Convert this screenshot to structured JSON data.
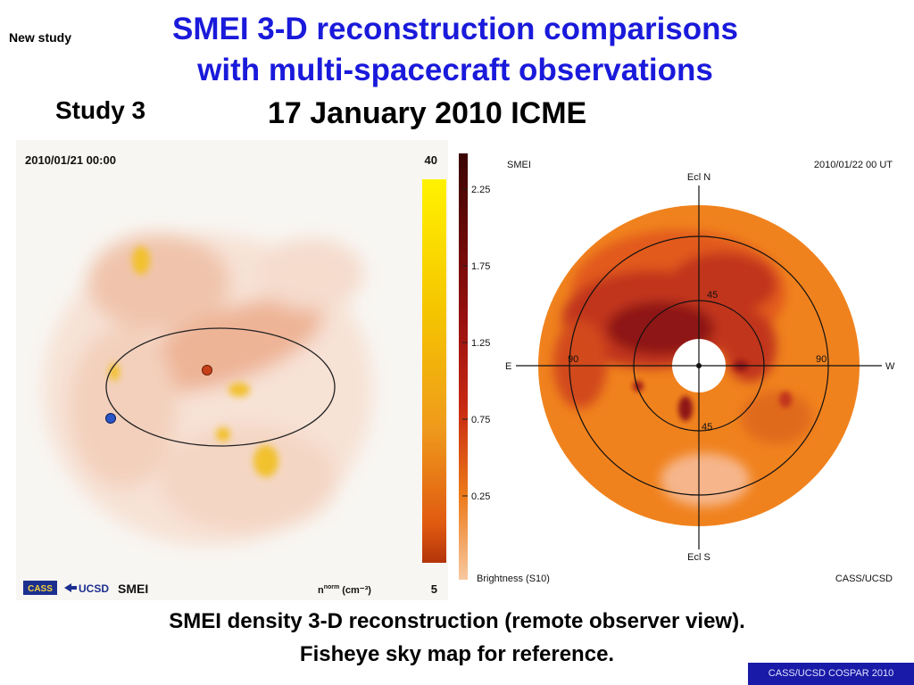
{
  "header": {
    "tag": "New study",
    "title_line1": "SMEI 3-D reconstruction comparisons",
    "title_line2": "with multi-spacecraft observations",
    "study": "Study 3",
    "event": "17 January 2010 ICME"
  },
  "left_panel": {
    "timestamp": "2010/01/21  00:00",
    "scale_max": "40",
    "scale_min": "5",
    "units": "n",
    "units_sup": "norm",
    "units_tail": "(cm⁻³)",
    "logo_cass": "CASS",
    "logo_ucsd": "UCSD",
    "logo_smei": "SMEI",
    "colors": {
      "bg": "#f8f6f2",
      "cloud": "#f2c2a8",
      "hot": "#f2c12e",
      "orbit": "#222222",
      "earth": "#2a55c8",
      "body": "#c8401a"
    }
  },
  "right_panel": {
    "instrument": "SMEI",
    "timestamp": "2010/01/22  00  UT",
    "north": "Ecl N",
    "south": "Ecl S",
    "east": "E",
    "west": "W",
    "ring_labels": [
      "45",
      "90",
      "90",
      "45"
    ],
    "colorbar_ticks": [
      "2.25",
      "1.75",
      "1.25",
      "0.75",
      "0.25"
    ],
    "brightness": "Brightness (S10)",
    "credit": "CASS/UCSD",
    "colors": {
      "disk": "#f0821e",
      "dark": "#c1351c",
      "darker": "#8f1512",
      "pale": "#f6b58a"
    }
  },
  "caption": {
    "line1": "SMEI density 3-D reconstruction (remote observer view).",
    "line2": "Fisheye sky map for reference."
  },
  "footer": "CASS/UCSD COSPAR 2010"
}
